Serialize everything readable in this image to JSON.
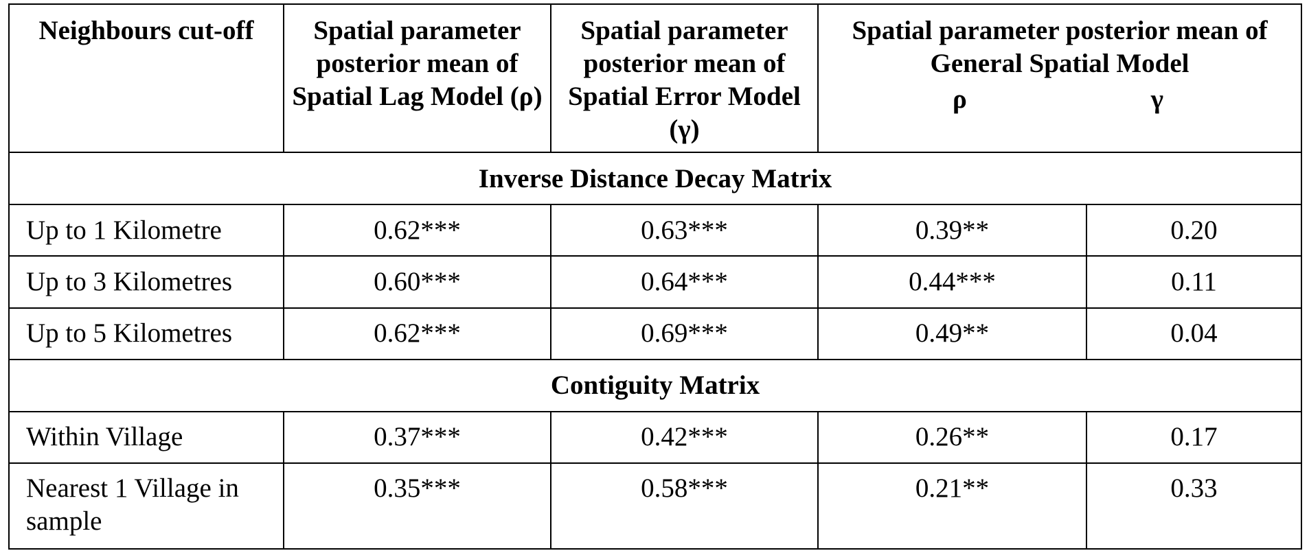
{
  "table": {
    "header": {
      "col1": "Neighbours cut-off",
      "col2": "Spatial parameter posterior mean  of Spatial Lag Model (ρ)",
      "col3": "Spatial parameter posterior mean of Spatial Error Model (γ)",
      "col4": "Spatial parameter   posterior mean of General Spatial  Model",
      "col4_rho": "ρ",
      "col4_gamma": "γ"
    },
    "sections": [
      {
        "title": "Inverse Distance Decay Matrix",
        "rows": [
          {
            "label": "Up to 1 Kilometre",
            "slm": "0.62***",
            "sem": "0.63***",
            "gsm_rho": "0.39**",
            "gsm_gamma": "0.20"
          },
          {
            "label": "Up to 3 Kilometres",
            "slm": "0.60***",
            "sem": "0.64***",
            "gsm_rho": "0.44***",
            "gsm_gamma": "0.11"
          },
          {
            "label": "Up to 5 Kilometres",
            "slm": "0.62***",
            "sem": "0.69***",
            "gsm_rho": "0.49**",
            "gsm_gamma": "0.04"
          }
        ]
      },
      {
        "title": "Contiguity Matrix",
        "rows": [
          {
            "label": "Within Village",
            "slm": "0.37***",
            "sem": "0.42***",
            "gsm_rho": "0.26**",
            "gsm_gamma": "0.17"
          },
          {
            "label": "Nearest 1 Village in sample",
            "slm": "0.35***",
            "sem": "0.58***",
            "gsm_rho": "0.21**",
            "gsm_gamma": "0.33"
          }
        ]
      }
    ]
  }
}
